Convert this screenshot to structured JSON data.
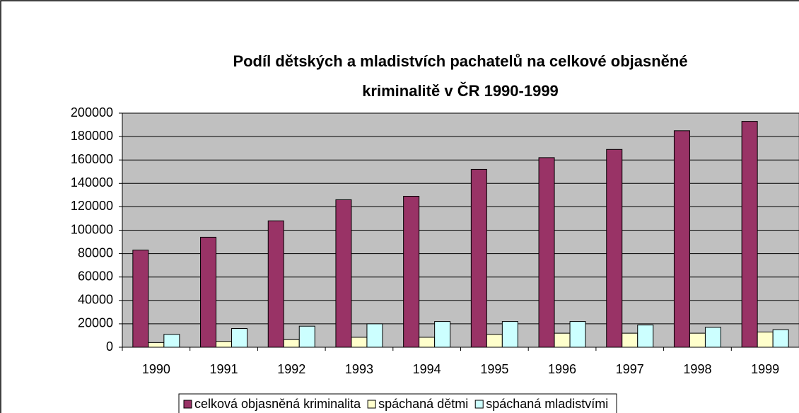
{
  "chart_data": {
    "type": "bar",
    "title": [
      "Podíl dětských a mladistvích pachatelů na celkové objasněné",
      "kriminalitě v ČR 1990-1999"
    ],
    "categories": [
      "1990",
      "1991",
      "1992",
      "1993",
      "1994",
      "1995",
      "1996",
      "1997",
      "1998",
      "1999"
    ],
    "series": [
      {
        "name": "celková objasněná kriminalita",
        "color": "#993366",
        "values": [
          83000,
          94000,
          108000,
          126000,
          129000,
          152000,
          162000,
          169000,
          185000,
          193000
        ]
      },
      {
        "name": "spáchaná dětmi",
        "color": "#ffffcc",
        "values": [
          4000,
          5000,
          6500,
          8500,
          8500,
          11000,
          12000,
          12000,
          12000,
          13000
        ]
      },
      {
        "name": "spáchaná mladistvími",
        "color": "#ccffff",
        "values": [
          11000,
          16000,
          18000,
          20000,
          22000,
          22000,
          22000,
          19000,
          17000,
          15000
        ]
      }
    ],
    "ylim": [
      0,
      200000
    ],
    "yticks": [
      0,
      20000,
      40000,
      60000,
      80000,
      100000,
      120000,
      140000,
      160000,
      180000,
      200000
    ],
    "grid": true,
    "legend": "bottom",
    "plot_background": "#c0c0c0"
  }
}
